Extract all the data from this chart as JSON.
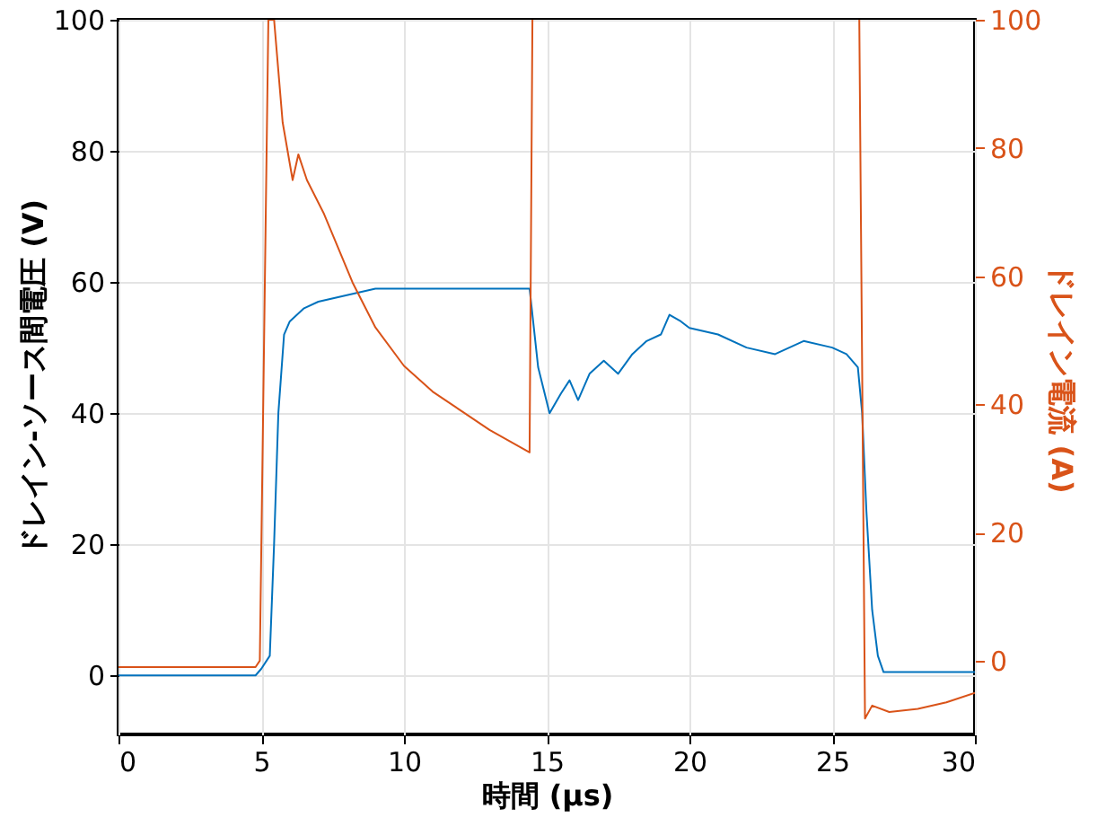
{
  "chart_data": {
    "type": "line",
    "xlabel": "時間 (µs)",
    "ylabel": "ドレイン-ソース間電圧 (V)",
    "y2label": "ドレイン電流 (A)",
    "xlim": [
      0,
      30
    ],
    "xticks": [
      0,
      5,
      10,
      15,
      20,
      25,
      30
    ],
    "ylim": [
      -9,
      100
    ],
    "yticks": [
      0,
      20,
      40,
      60,
      80,
      100
    ],
    "y2lim": [
      -11.5,
      100
    ],
    "y2ticks": [
      0,
      20,
      40,
      60,
      80,
      100
    ],
    "grid": true,
    "series": [
      {
        "color": "#0072bd",
        "x": [
          0,
          1,
          2,
          3,
          4,
          4.8,
          5.0,
          5.3,
          5.45,
          5.6,
          5.8,
          6.0,
          6.5,
          7,
          8,
          9,
          10,
          12,
          14.4,
          14.55,
          14.7,
          15.1,
          15.5,
          15.8,
          16.1,
          16.5,
          17.0,
          17.5,
          18.0,
          18.5,
          19.0,
          19.3,
          19.7,
          20,
          21,
          22,
          23,
          23.5,
          24,
          25,
          25.5,
          25.9,
          26.05,
          26.2,
          26.4,
          26.6,
          26.8,
          28,
          30
        ],
        "values": [
          0,
          0,
          0,
          0,
          0,
          0,
          1,
          3,
          20,
          40,
          52,
          54,
          56,
          57,
          58,
          59,
          59,
          59,
          59,
          53,
          47,
          40,
          43,
          45,
          42,
          46,
          48,
          46,
          49,
          51,
          52,
          55,
          54,
          53,
          52,
          50,
          49,
          50,
          51,
          50,
          49,
          47,
          40,
          25,
          10,
          3,
          0.5,
          0.5,
          0.5
        ]
      },
      {
        "color": "#d95319",
        "axis": "y2",
        "x": [
          0,
          1,
          2,
          3,
          4,
          4.8,
          4.95,
          5.25,
          5.45,
          5.75,
          6.1,
          6.3,
          6.6,
          7.2,
          8.2,
          9,
          10,
          11,
          12.1,
          13,
          14.4,
          14.5,
          14.6,
          25.9,
          25.95,
          26.15,
          26.4,
          27,
          28,
          29,
          30
        ],
        "values": [
          -1,
          -1,
          -1,
          -1,
          -1,
          -1,
          0,
          100,
          100,
          84,
          75,
          79,
          75,
          69.7,
          59,
          52,
          46,
          42,
          38.7,
          36,
          32.5,
          100,
          null,
          null,
          100,
          -9,
          -7,
          -8,
          -7.5,
          -6.5,
          -5
        ]
      }
    ]
  }
}
